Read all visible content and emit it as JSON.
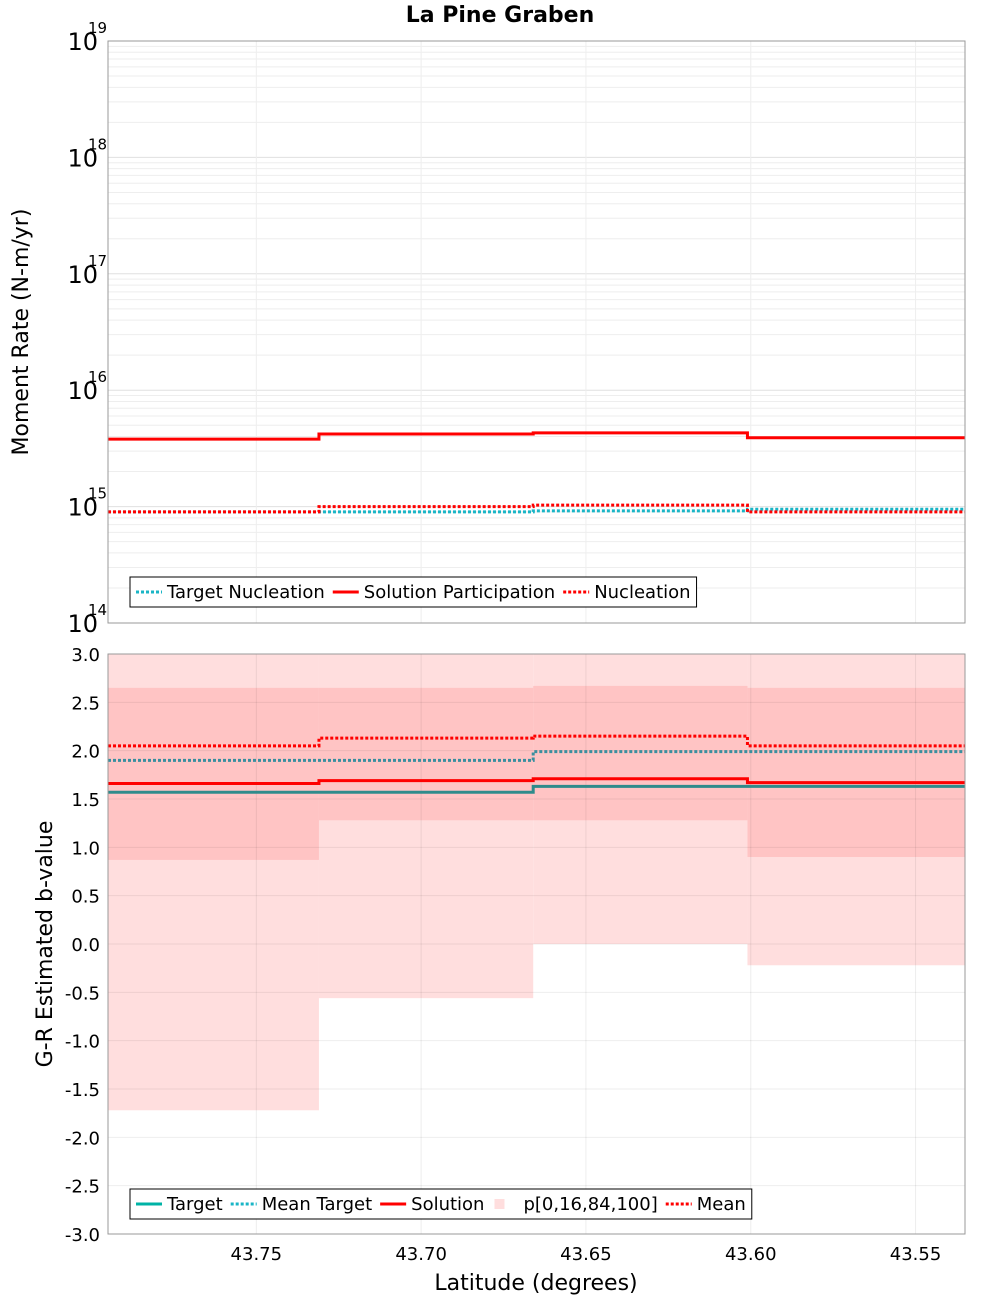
{
  "chart_data": {
    "title": "La Pine Graben",
    "xlabel": "Latitude (degrees)",
    "x_reversed": true,
    "xlim": [
      43.795,
      43.535
    ],
    "x_ticks": [
      "43.75",
      "43.70",
      "43.65",
      "43.60",
      "43.55"
    ],
    "bin_edges": [
      43.795,
      43.731,
      43.666,
      43.601,
      43.535
    ],
    "panels": [
      {
        "id": "moment",
        "type": "line",
        "ylabel": "Moment Rate (N-m/yr)",
        "y_scale": "log",
        "ylim": [
          100000000000000.0,
          1e+19
        ],
        "y_tick_exponents": [
          "14",
          "15",
          "16",
          "17",
          "18",
          "19"
        ],
        "y_tick_base": "10",
        "grid": true,
        "legend_position": "bottom-left",
        "series": [
          {
            "name": "Target Nucleation",
            "color": "#1ab5c6",
            "style": "dotted",
            "values": [
              900000000000000.0,
              900000000000000.0,
              920000000000000.0,
              950000000000000.0
            ]
          },
          {
            "name": "Solution Participation",
            "color": "#ff0000",
            "style": "solid",
            "values": [
              3800000000000000.0,
              4200000000000000.0,
              4300000000000000.0,
              3900000000000000.0
            ]
          },
          {
            "name": "Nucleation",
            "color": "#ff0000",
            "style": "dotted",
            "values": [
              900000000000000.0,
              1000000000000000.0,
              1030000000000000.0,
              900000000000000.0
            ]
          }
        ]
      },
      {
        "id": "bvalue",
        "type": "line",
        "ylabel": "G-R Estimated b-value",
        "y_scale": "linear",
        "ylim": [
          -3.0,
          3.0
        ],
        "y_ticks": [
          "3.0",
          "2.5",
          "2.0",
          "1.5",
          "1.0",
          "0.5",
          "0.0",
          "-0.5",
          "-1.0",
          "-1.5",
          "-2.0",
          "-2.5",
          "-3.0"
        ],
        "grid": true,
        "legend_position": "bottom-left",
        "bands": {
          "name": "p[0,16,84,100]",
          "outer_color": "#ffdede",
          "inner_color": "#ffc4c4",
          "p0": [
            -1.72,
            -0.56,
            0.0,
            -0.22
          ],
          "p16": [
            0.87,
            1.28,
            1.28,
            0.9
          ],
          "p84": [
            2.65,
            2.65,
            2.67,
            2.65
          ],
          "p100": [
            3.0,
            3.0,
            3.0,
            3.0
          ]
        },
        "series": [
          {
            "name": "Target",
            "color": "#2e8b8b",
            "style": "solid",
            "values": [
              1.57,
              1.57,
              1.63,
              1.63
            ]
          },
          {
            "name": "Mean Target",
            "color": "#3a8f9f",
            "style": "dotted",
            "values": [
              1.9,
              1.9,
              1.99,
              1.99
            ]
          },
          {
            "name": "Solution",
            "color": "#ff0000",
            "style": "solid",
            "values": [
              1.66,
              1.69,
              1.71,
              1.67
            ]
          },
          {
            "name": "Mean",
            "color": "#ff0000",
            "style": "dotted",
            "values": [
              2.05,
              2.13,
              2.15,
              2.05
            ]
          }
        ],
        "legend_order": [
          "Target",
          "Mean Target",
          "Solution",
          "p[0,16,84,100]",
          "Mean"
        ]
      }
    ]
  }
}
